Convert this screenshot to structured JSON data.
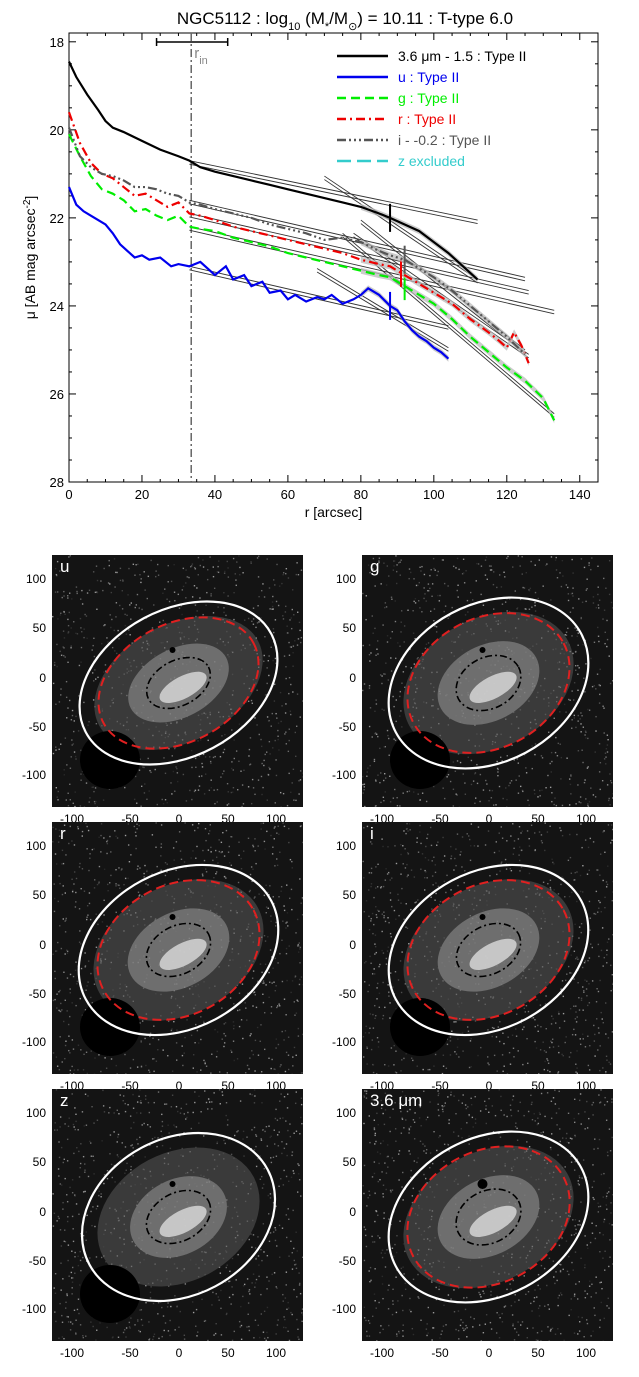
{
  "chart_data": [
    {
      "type": "line",
      "title": "NGC5112 : log10 (M*/M⊙) = 10.11 : T-type 6.0",
      "title_parts": {
        "a": "NGC5112 : log",
        "sub": "10",
        "b": " (M",
        "star": "*",
        "c": "/M",
        "sun": "⊙",
        "d": ") = 10.11 : T-type 6.0"
      },
      "xlabel": "r [arcsec]",
      "ylabel": "μ [AB mag arcsec⁻²]",
      "ylabel_parts": {
        "main": "μ [AB mag arcsec",
        "sup": "-2",
        "close": "]"
      },
      "xlim": [
        0,
        145
      ],
      "ylim": [
        28,
        17.8
      ],
      "y_inverted": true,
      "x_ticks": [
        0,
        20,
        40,
        60,
        80,
        100,
        120,
        140
      ],
      "y_ticks": [
        18,
        20,
        22,
        24,
        26,
        28
      ],
      "x_tick_labels": [
        "0",
        "20",
        "40",
        "60",
        "80",
        "100",
        "120",
        "140"
      ],
      "y_tick_labels": [
        "18",
        "20",
        "22",
        "24",
        "26",
        "28"
      ],
      "grid": false,
      "legend_position": "top-right",
      "r_in": {
        "label_main": "r",
        "label_sub": "in",
        "x": 33.5,
        "bar": [
          24,
          43.5
        ]
      },
      "series": [
        {
          "name": "3.6 μm - 1.5 : Type II",
          "color": "#000000",
          "dash": "solid",
          "break_r": 88,
          "x": [
            0,
            2,
            5,
            8,
            10,
            12,
            15,
            20,
            25,
            30,
            33,
            36,
            40,
            45,
            50,
            55,
            60,
            65,
            70,
            75,
            80,
            85,
            88,
            92,
            96,
            100,
            104,
            108,
            112
          ],
          "y": [
            18.45,
            18.8,
            19.2,
            19.55,
            19.8,
            19.95,
            20.05,
            20.25,
            20.45,
            20.6,
            20.7,
            20.85,
            20.95,
            21.05,
            21.15,
            21.25,
            21.35,
            21.45,
            21.55,
            21.65,
            21.75,
            21.9,
            22.0,
            22.15,
            22.3,
            22.55,
            22.8,
            23.1,
            23.4
          ]
        },
        {
          "name": "u : Type II",
          "color": "#0000ee",
          "dash": "solid",
          "break_r": 88,
          "x": [
            0,
            2,
            4,
            6,
            8,
            10,
            12,
            14,
            16,
            18,
            20,
            22,
            25,
            28,
            30,
            33,
            36,
            40,
            43,
            45,
            48,
            50,
            53,
            55,
            58,
            60,
            62,
            65,
            68,
            70,
            72,
            75,
            78,
            80,
            82,
            85,
            88,
            90,
            92,
            94,
            96,
            98,
            100,
            102,
            104
          ],
          "y": [
            21.3,
            21.7,
            21.85,
            21.95,
            22.05,
            22.15,
            22.35,
            22.6,
            22.75,
            22.9,
            22.85,
            22.95,
            22.9,
            23.1,
            23.05,
            23.1,
            23.0,
            23.3,
            23.1,
            23.4,
            23.3,
            23.55,
            23.45,
            23.7,
            23.65,
            23.85,
            23.75,
            23.9,
            23.8,
            23.85,
            23.75,
            23.95,
            23.85,
            23.75,
            23.6,
            23.75,
            24.0,
            24.1,
            24.35,
            24.55,
            24.7,
            24.8,
            24.95,
            25.05,
            25.2
          ]
        },
        {
          "name": "g : Type II",
          "color": "#00ee00",
          "dash": "dash",
          "break_r": 92,
          "x": [
            0,
            3,
            6,
            9,
            12,
            15,
            18,
            21,
            24,
            27,
            30,
            33,
            36,
            40,
            45,
            50,
            55,
            60,
            65,
            70,
            75,
            80,
            85,
            88,
            90,
            92,
            95,
            100,
            105,
            110,
            115,
            120,
            125,
            130,
            133
          ],
          "y": [
            20.1,
            20.6,
            21.05,
            21.35,
            21.45,
            21.6,
            21.85,
            21.8,
            21.95,
            22.05,
            21.95,
            22.2,
            22.25,
            22.3,
            22.45,
            22.55,
            22.65,
            22.8,
            22.9,
            23.0,
            23.1,
            23.2,
            23.3,
            23.35,
            23.45,
            23.55,
            23.7,
            23.95,
            24.3,
            24.7,
            25.05,
            25.4,
            25.7,
            26.1,
            26.6
          ]
        },
        {
          "name": "r : Type II",
          "color": "#ee0000",
          "dash": "dashdot",
          "break_r": 91,
          "x": [
            0,
            3,
            6,
            9,
            12,
            15,
            18,
            21,
            24,
            27,
            30,
            33,
            36,
            40,
            45,
            50,
            55,
            60,
            65,
            70,
            75,
            80,
            85,
            88,
            91,
            95,
            100,
            105,
            110,
            115,
            118,
            120,
            122,
            124,
            126
          ],
          "y": [
            19.6,
            20.3,
            20.75,
            21.0,
            21.1,
            21.3,
            21.5,
            21.45,
            21.6,
            21.75,
            21.65,
            21.9,
            21.95,
            22.05,
            22.2,
            22.3,
            22.4,
            22.5,
            22.6,
            22.7,
            22.8,
            22.95,
            23.05,
            23.1,
            23.25,
            23.45,
            23.7,
            23.95,
            24.3,
            24.6,
            24.8,
            24.95,
            24.6,
            24.9,
            25.3
          ]
        },
        {
          "name": "i - -0.2 : Type II",
          "color": "#555555",
          "dash": "dashdotdotdot",
          "break_r": 92,
          "x": [
            0,
            3,
            6,
            9,
            12,
            15,
            18,
            21,
            24,
            27,
            30,
            33,
            36,
            40,
            45,
            50,
            55,
            60,
            65,
            70,
            75,
            80,
            85,
            88,
            92,
            95,
            100,
            105,
            110,
            115,
            120,
            125
          ],
          "y": [
            19.95,
            20.6,
            20.85,
            21.0,
            21.05,
            21.15,
            21.3,
            21.3,
            21.35,
            21.45,
            21.5,
            21.65,
            21.7,
            21.8,
            21.9,
            22.0,
            22.15,
            22.25,
            22.35,
            22.5,
            22.45,
            22.55,
            22.75,
            22.85,
            22.95,
            23.1,
            23.35,
            23.65,
            24.0,
            24.35,
            24.7,
            25.1
          ]
        },
        {
          "name": "z excluded",
          "color": "#33cccc",
          "dash": "longdash",
          "x": [],
          "y": []
        }
      ],
      "fits": [
        {
          "series": "3.6 μm - 1.5 : Type II",
          "color": "#000000",
          "inner": [
            [
              33,
              20.7
            ],
            [
              112,
              22.05
            ]
          ],
          "outer": [
            [
              70,
              21.05
            ],
            [
              112,
              23.4
            ]
          ]
        },
        {
          "series": "u : Type II",
          "color": "#0000ee",
          "inner": [
            [
              33,
              23.1
            ],
            [
              104,
              24.45
            ]
          ],
          "outer": [
            [
              68,
              23.15
            ],
            [
              104,
              24.95
            ]
          ]
        },
        {
          "series": "g : Type II",
          "color": "#00ee00",
          "inner": [
            [
              33,
              22.2
            ],
            [
              133,
              24.1
            ]
          ],
          "outer": [
            [
              75,
              22.35
            ],
            [
              133,
              26.45
            ]
          ]
        },
        {
          "series": "r : Type II",
          "color": "#ee0000",
          "inner": [
            [
              33,
              21.9
            ],
            [
              126,
              23.65
            ]
          ],
          "outer": [
            [
              78,
              22.35
            ],
            [
              126,
              25.1
            ]
          ]
        },
        {
          "series": "i - -0.2 : Type II",
          "color": "#555555",
          "inner": [
            [
              33,
              21.6
            ],
            [
              125,
              23.35
            ]
          ],
          "outer": [
            [
              80,
              22.05
            ],
            [
              125,
              25.0
            ]
          ]
        }
      ]
    }
  ],
  "image_panels": [
    {
      "label": "u",
      "axis_labels": [
        "-100",
        "-50",
        "0",
        "50",
        "100"
      ],
      "y_labels": [
        "100",
        "50",
        "0",
        "-50",
        "-100"
      ],
      "mask": true
    },
    {
      "label": "g",
      "axis_labels": [
        "-100",
        "-50",
        "0",
        "50",
        "100"
      ],
      "y_labels": [
        "100",
        "50",
        "0",
        "-50",
        "-100"
      ],
      "mask": true
    },
    {
      "label": "r",
      "axis_labels": [
        "-100",
        "-50",
        "0",
        "50",
        "100"
      ],
      "y_labels": [
        "100",
        "50",
        "0",
        "-50",
        "-100"
      ],
      "mask": true
    },
    {
      "label": "i",
      "axis_labels": [
        "-100",
        "-50",
        "0",
        "50",
        "100"
      ],
      "y_labels": [
        "100",
        "50",
        "0",
        "-50",
        "-100"
      ],
      "mask": true
    },
    {
      "label": "z",
      "axis_labels": [
        "-100",
        "-50",
        "0",
        "50",
        "100"
      ],
      "y_labels": [
        "100",
        "50",
        "0",
        "-50",
        "-100"
      ],
      "mask": true
    },
    {
      "label": "3.6 μm",
      "axis_labels": [
        "-100",
        "-50",
        "0",
        "50",
        "100"
      ],
      "y_labels": [
        "100",
        "50",
        "0",
        "-50",
        "-100"
      ],
      "mask": false
    }
  ]
}
